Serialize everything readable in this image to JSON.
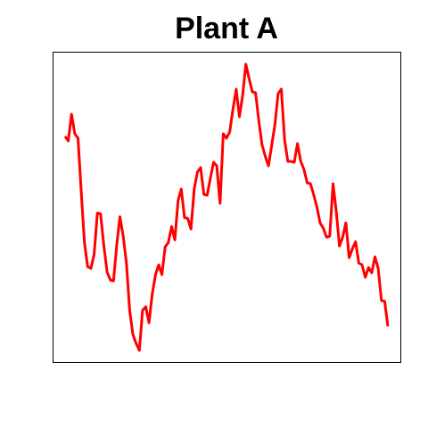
{
  "chart_data": {
    "type": "line",
    "title": "Plant A",
    "series": [
      {
        "color": "#ff0000",
        "values": [
          253,
          248,
          278,
          256,
          251,
          191,
          134,
          107,
          105,
          121,
          167,
          166,
          131,
          101,
          92,
          91,
          131,
          163,
          141,
          111,
          58,
          31,
          21,
          13,
          58,
          62,
          44,
          76,
          98,
          109,
          98,
          129,
          134,
          152,
          137,
          181,
          194,
          162,
          161,
          149,
          194,
          213,
          218,
          188,
          187,
          206,
          224,
          220,
          178,
          256,
          251,
          258,
          283,
          306,
          275,
          299,
          334,
          318,
          303,
          302,
          271,
          244,
          231,
          220,
          243,
          266,
          301,
          306,
          249,
          225,
          225,
          224,
          245,
          225,
          216,
          201,
          200,
          188,
          174,
          156,
          150,
          140,
          141,
          200,
          169,
          130,
          140,
          156,
          117,
          127,
          135,
          111,
          109,
          95,
          106,
          100,
          118,
          105,
          69,
          68,
          40
        ]
      }
    ],
    "ylim": [
      0,
      348
    ]
  }
}
